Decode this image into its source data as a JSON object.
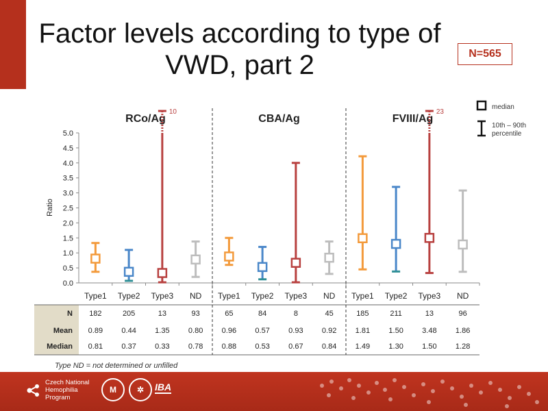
{
  "slide": {
    "title_line1": "Factor levels according to type of",
    "title_line2": "VWD, part 2",
    "n_box": "N=565",
    "footnote": "Type ND = not determined or unfilled"
  },
  "legend": {
    "median_label": "median",
    "percentile_label_line1": "10th – 90th",
    "percentile_label_line2": "percentile"
  },
  "footer": {
    "brand_line1": "Czech National",
    "brand_line2": "Hemophilia",
    "brand_line3": "Program",
    "logo_iba": "IBA"
  },
  "chart_data": {
    "type": "box",
    "ylabel": "Ratio",
    "ylim": [
      0,
      5
    ],
    "yticks": [
      "0.0",
      "0.5",
      "1.0",
      "1.5",
      "2.0",
      "2.5",
      "3.0",
      "3.5",
      "4.0",
      "4.5",
      "5.0"
    ],
    "categories": [
      "Type1",
      "Type2",
      "Type3",
      "ND"
    ],
    "colors": {
      "Type1": "#f39a3b",
      "Type2": "#4a87c9",
      "Type3": "#b8403f",
      "ND": "#bdbdbd"
    },
    "table_row_labels": [
      "N",
      "Mean",
      "Median"
    ],
    "groups": [
      {
        "name": "RCo/Ag",
        "series": [
          {
            "category": "Type1",
            "p10": 0.37,
            "p90": 1.33,
            "median": 0.81,
            "N": "182",
            "Mean": "0.89",
            "Median": "0.81"
          },
          {
            "category": "Type2",
            "p10": 0.07,
            "p90": 1.1,
            "median": 0.37,
            "N": "205",
            "Mean": "0.44",
            "Median": "0.37"
          },
          {
            "category": "Type3",
            "p10": 0.02,
            "p90": 10,
            "median": 0.33,
            "N": "13",
            "Mean": "1.35",
            "Median": "0.33",
            "top_label": "10"
          },
          {
            "category": "ND",
            "p10": 0.2,
            "p90": 1.38,
            "median": 0.78,
            "N": "93",
            "Mean": "0.80",
            "Median": "0.78"
          }
        ]
      },
      {
        "name": "CBA/Ag",
        "series": [
          {
            "category": "Type1",
            "p10": 0.6,
            "p90": 1.5,
            "median": 0.88,
            "N": "65",
            "Mean": "0.96",
            "Median": "0.88"
          },
          {
            "category": "Type2",
            "p10": 0.12,
            "p90": 1.2,
            "median": 0.53,
            "N": "84",
            "Mean": "0.57",
            "Median": "0.53"
          },
          {
            "category": "Type3",
            "p10": 0.02,
            "p90": 4.0,
            "median": 0.67,
            "N": "8",
            "Mean": "0.93",
            "Median": "0.67"
          },
          {
            "category": "ND",
            "p10": 0.3,
            "p90": 1.38,
            "median": 0.84,
            "N": "45",
            "Mean": "0.92",
            "Median": "0.84"
          }
        ]
      },
      {
        "name": "FVIII/Ag",
        "series": [
          {
            "category": "Type1",
            "p10": 0.45,
            "p90": 4.22,
            "median": 1.49,
            "N": "185",
            "Mean": "1.81",
            "Median": "1.49"
          },
          {
            "category": "Type2",
            "p10": 0.38,
            "p90": 3.2,
            "median": 1.3,
            "N": "211",
            "Mean": "1.50",
            "Median": "1.30"
          },
          {
            "category": "Type3",
            "p10": 0.33,
            "p90": 23,
            "median": 1.5,
            "N": "13",
            "Mean": "3.48",
            "Median": "1.50",
            "top_label": "23"
          },
          {
            "category": "ND",
            "p10": 0.37,
            "p90": 3.08,
            "median": 1.28,
            "N": "96",
            "Mean": "1.86",
            "Median": "1.28"
          }
        ]
      }
    ]
  }
}
